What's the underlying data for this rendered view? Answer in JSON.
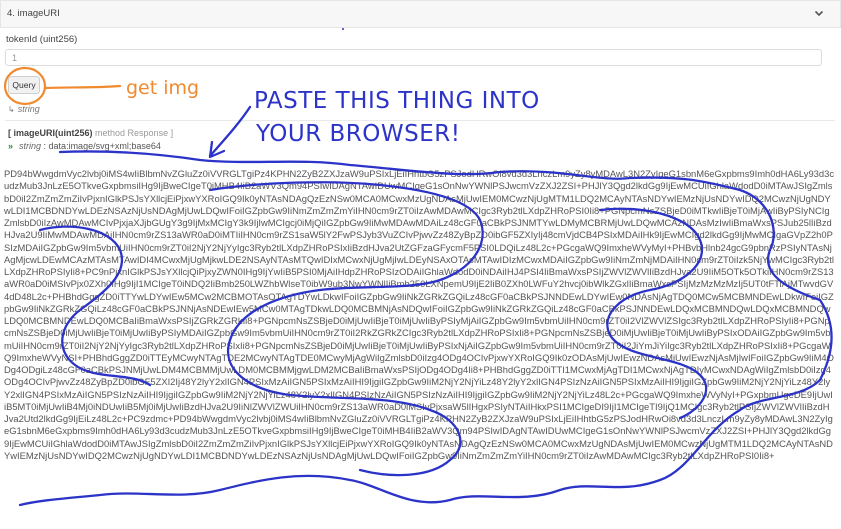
{
  "section": {
    "title": "4. imageURI",
    "collapse_icon": "chevron-down-icon"
  },
  "form": {
    "token_label": "tokenId (uint256)",
    "token_value": "1",
    "query_label": "Query",
    "return_type": "string"
  },
  "result": {
    "label": "[ imageURI(uint256) method Response ]",
    "label_main": "[ imageURI(uint256)",
    "label_muted": "method Response ]",
    "type_label": "string",
    "prefix": ": data:image/svg+xml;base64",
    "data": "PD94bWwgdmVyc2lvbj0iMS4wIiBlbmNvZGluZz0iVVRGLTgiPz4KPHN2ZyB2ZXJzaW9uPSIxLjEiIHhtbG5zPSJodHRwOi8vd3d3LnczLm9yZy8yMDAwL3N2ZyIgeG1sbnM6eGxpbms9Imh0dHA6Ly93d3cudzMub3JnLzE5OTkveGxpbmsiIHg9IjBweCIgeT0iMHB4IiB2aWV3Qm94PSIwIDAgNTAwIDUwMCIgeG1sOnNwYWNlPSJwcmVzZXJ2ZSI+PHJlY3Qgd2lkdGg9IjEwMCUiIGhlaWdodD0iMTAwJSIgZmlsbD0iI2ZmZmZmZiIvPjxnIGlkPSJsYXllcjEiPjxwYXRoIGQ9Ik0yNTAsNDAgQzEzNSw0MCA0MCwxMzUgNDAsMjUwIEM0MCwzNjUgMTM1LDQ2MCAyNTAsNDYwIEMzNjUsNDYwIDQ2MCwzNjUgNDYwLDI1MCBDNDYwLDEzNSAzNjUsNDAgMjUwLDQwIFoiIGZpbGw9IiNmZmZmZmYiIHN0cm9rZT0iIzAwMDAwMCIgc3Ryb2tlLXdpZHRoPSI0Ii8+PGNpcmNsZSBjeD0iMTkwIiBjeT0iMjAwIiByPSIyNCIgZmlsbD0iIzAwMDAwMCIvPjxjaXJjbGUgY3g9IjMxMCIgY3k9IjIwMCIgcj0iMjQiIGZpbGw9IiMwMDAwMDAiLz48cGF0aCBkPSJNMTYwLDMyMCBRMjUwLDQwMCAzNDAsMzIwIiBmaWxsPSJub25lIiBzdHJva2U9IiMwMDAwMDAiIHN0cm9rZS13aWR0aD0iMTIiIHN0cm9rZS1saW5lY2FwPSJyb3VuZCIvPjwvZz48ZyBpZD0ibGF5ZXIyIj48cmVjdCB4PSIxMDAiIHk9IjEwMCIgd2lkdGg9IjMwMCIgaGVpZ2h0PSIzMDAiIGZpbGw9Im5vbmUiIHN0cm9rZT0iI2NjY2NjYyIgc3Ryb2tlLXdpZHRoPSIxIiBzdHJva2UtZGFzaGFycmF5PSI0LDQiLz48L2c+PGcgaWQ9ImxheWVyMyI+PHBvbHlnb24gcG9pbnRzPSIyNTAsNjAgMjcwLDEwMCAzMTAsMTAwIDI4MCwxMjUgMjkwLDE2NSAyNTAsMTQwIDIxMCwxNjUgMjIwLDEyNSAxOTAsMTAwIDIzMCwxMDAiIGZpbGw9IiNmZmNjMDAiIHN0cm9rZT0iIzk5NjYwMCIgc3Ryb2tlLXdpZHRoPSIyIi8+PC9nPjxnIGlkPSJsYXllcjQiPjxyZWN0IHg9IjYwIiB5PSI0MjAiIHdpZHRoPSIzODAiIGhlaWdodD0iNDAiIHJ4PSI4IiBmaWxsPSIjZWVlZWVlIiBzdHJva2U9IiM5OTk5OTkiIHN0cm9rZS13aWR0aD0iMSIvPjx0ZXh0IHg9IjI1MCIgeT0iNDQ2IiBmb250LWZhbWlseT0ibW9ub3NwYWNlIiBmb250LXNpemU9IjE2IiB0ZXh0LWFuY2hvcj0ibWlkZGxlIiBmaWxsPSIjMzMzMzMzIj5UT0tFTiAjMTwvdGV4dD48L2c+PHBhdGggZD0iTTYwLDYwIEw5MCw2MCBMOTAsOTAgTDYwLDkwIFoiIGZpbGw9IiNkZGRkZGQiLz48cGF0aCBkPSJNNDEwLDYwIEw0NDAsNjAgTDQ0MCw5MCBMNDEwLDkwIFoiIGZpbGw9IiNkZGRkZGQiLz48cGF0aCBkPSJNNjAsNDEwIEw5MCw0MTAgTDkwLDQ0MCBMNjAsNDQwIFoiIGZpbGw9IiNkZGRkZGQiLz48cGF0aCBkPSJNNDEwLDQxMCBMNDQwLDQxMCBMNDQwLDQ0MCBMNDEwLDQ0MCBaIiBmaWxsPSIjZGRkZGRkIi8+PGNpcmNsZSBjeD0iMjUwIiBjeT0iMjUwIiByPSIyMjAiIGZpbGw9Im5vbmUiIHN0cm9rZT0iI2VlZWVlZSIgc3Ryb2tlLXdpZHRoPSIyIi8+PGNpcmNsZSBjeD0iMjUwIiBjeT0iMjUwIiByPSIyMDAiIGZpbGw9Im5vbmUiIHN0cm9rZT0iI2RkZGRkZCIgc3Ryb2tlLXdpZHRoPSIxIi8+PGNpcmNsZSBjeD0iMjUwIiBjeT0iMjUwIiByPSIxODAiIGZpbGw9Im5vbmUiIHN0cm9rZT0iI2NjY2NjYyIgc3Ryb2tlLXdpZHRoPSIxIi8+PGNpcmNsZSBjeD0iMjUwIiBjeT0iMjUwIiByPSIxNjAiIGZpbGw9Im5vbmUiIHN0cm9rZT0iI2JiYmJiYiIgc3Ryb2tlLXdpZHRoPSIxIi8+PGcgaWQ9ImxheWVyNSI+PHBhdGggZD0iTTEyMCwyNTAgTDE2MCwyNTAgTDE0MCwyMjAgWiIgZmlsbD0iIzg4ODg4OCIvPjxwYXRoIGQ9Ik0zODAsMjUwIEwzNDAsMjUwIEwzNjAsMjIwIFoiIGZpbGw9IiM4ODg4ODgiLz48cGF0aCBkPSJNMjUwLDM4MCBMMjUwLDM0MCBMMjgwLDM2MCBaIiBmaWxsPSIjODg4ODg4Ii8+PHBhdGggZD0iTTI1MCwxMjAgTDI1MCwxNjAgTDIyMCwxNDAgWiIgZmlsbD0iIzg4ODg4OCIvPjwvZz48ZyBpZD0ibGF5ZXI2Ij48Y2lyY2xlIGN4PSIxMzAiIGN5PSIxMzAiIHI9IjgiIGZpbGw9IiM2NjY2NjYiLz48Y2lyY2xlIGN4PSIzNzAiIGN5PSIxMzAiIHI9IjgiIGZpbGw9IiM2NjY2NjYiLz48Y2lyY2xlIGN4PSIxMzAiIGN5PSIzNzAiIHI9IjgiIGZpbGw9IiM2NjY2NjYiLz48Y2lyY2xlIGN4PSIzNzAiIGN5PSIzNzAiIHI9IjgiIGZpbGw9IiM2NjY2NjYiLz48L2c+PGcgaWQ9ImxheWVyNyI+PGxpbmUgeDE9IjUwIiB5MT0iMjUwIiB4Mj0iNDUwIiB5Mj0iMjUwIiBzdHJva2U9IiNlZWVlZWUiIHN0cm9rZS13aWR0aD0iMSIvPjxsaW5lIHgxPSIyNTAiIHkxPSI1MCIgeDI9IjI1MCIgeTI9IjQ1MCIgc3Ryb2tlPSIjZWVlZWVlIiBzdHJva2Utd2lkdGg9IjEiLz48L2c+PC9zdmc+PD94bWwgdmVyc2lvbj0iMS4wIiBlbmNvZGluZz0iVVRGLTgiPz4KPHN2ZyB2ZXJzaW9uPSIxLjEiIHhtbG5zPSJodHRwOi8vd3d3LnczLm9yZy8yMDAwL3N2ZyIgeG1sbnM6eGxpbms9Imh0dHA6Ly93d3cudzMub3JnLzE5OTkveGxpbmsiIHg9IjBweCIgeT0iMHB4IiB2aWV3Qm94PSIwIDAgNTAwIDUwMCIgeG1sOnNwYWNlPSJwcmVzZXJ2ZSI+PHJlY3Qgd2lkdGg9IjEwMCUiIGhlaWdodD0iMTAwJSIgZmlsbD0iI2ZmZmZmZiIvPjxnIGlkPSJsYXllcjEiPjxwYXRoIGQ9Ik0yNTAsNDAgQzEzNSw0MCA0MCwxMzUgNDAsMjUwIEM0MCwzNjUgMTM1LDQ2MCAyNTAsNDYwIEMzNjUsNDYwIDQ2MCwzNjUgNDYwLDI1MCBDNDYwLDEzNSAzNjUsNDAgMjUwLDQwIFoiIGZpbGw9IiNmZmZmZmYiIHN0cm9rZT0iIzAwMDAwMCIgc3Ryb2tlLXdpZHRoPSI0Ii8+"
  },
  "annotations": {
    "get_img": "get img",
    "paste_line1": "PASTE THIS THING INTO",
    "paste_line2": "YOUR BROWSER!"
  },
  "colors": {
    "annotation_blue": "#2c33c8",
    "annotation_orange": "#f08a2e"
  }
}
